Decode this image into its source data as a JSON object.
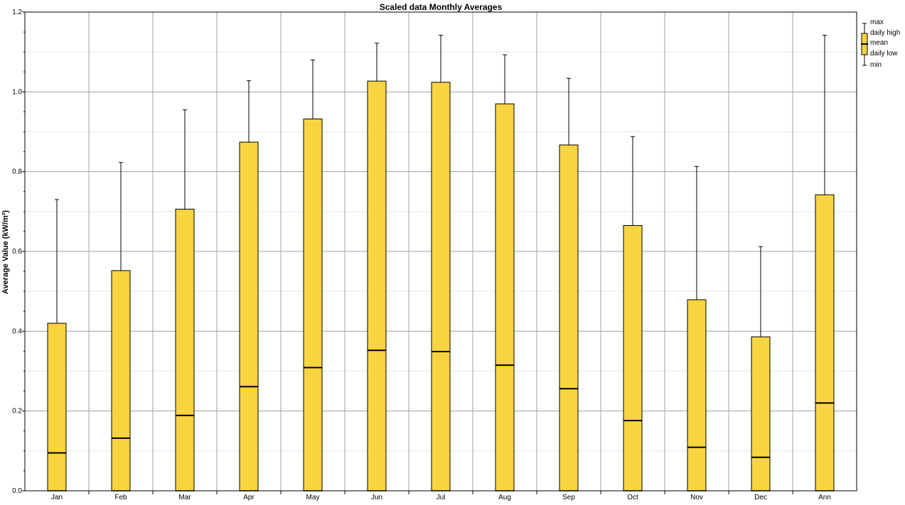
{
  "chart_data": {
    "type": "box",
    "title": "Scaled data Monthly Averages",
    "ylabel": "Average Value (kW/m²)",
    "xlabel": "",
    "ylim": [
      0,
      1.2
    ],
    "yticks": [
      0.0,
      0.2,
      0.4,
      0.6,
      0.8,
      1.0,
      1.2
    ],
    "ytick_labels": [
      "0.0",
      "0.2",
      "0.4",
      "0.6",
      "0.8",
      "1.0",
      "1.2"
    ],
    "grid": true,
    "legend_position": "top-right",
    "legend": [
      "max",
      "daily high",
      "mean",
      "daily low",
      "min"
    ],
    "colors": {
      "box_fill": "#f9d441",
      "outline": "#000000",
      "grid_major": "#a0a0a0",
      "grid_minor": "#e8e8e8"
    },
    "categories": [
      "Jan",
      "Feb",
      "Mar",
      "Apr",
      "May",
      "Jun",
      "Jul",
      "Aug",
      "Sep",
      "Oct",
      "Nov",
      "Dec",
      "Ann"
    ],
    "series": {
      "max": [
        0.73,
        0.823,
        0.955,
        1.028,
        1.08,
        1.122,
        1.142,
        1.093,
        1.034,
        0.888,
        0.813,
        0.612,
        1.142
      ],
      "daily_high": [
        0.42,
        0.552,
        0.706,
        0.874,
        0.932,
        1.027,
        1.024,
        0.97,
        0.867,
        0.665,
        0.479,
        0.386,
        0.742
      ],
      "mean": [
        0.095,
        0.132,
        0.189,
        0.261,
        0.309,
        0.352,
        0.349,
        0.315,
        0.256,
        0.176,
        0.109,
        0.084,
        0.22
      ],
      "daily_low": [
        0.0,
        0.0,
        0.0,
        0.0,
        0.0,
        0.0,
        0.0,
        0.0,
        0.0,
        0.0,
        0.0,
        0.0,
        0.0
      ],
      "min": [
        0.0,
        0.0,
        0.0,
        0.0,
        0.0,
        0.0,
        0.0,
        0.0,
        0.0,
        0.0,
        0.0,
        0.0,
        0.0
      ]
    }
  }
}
